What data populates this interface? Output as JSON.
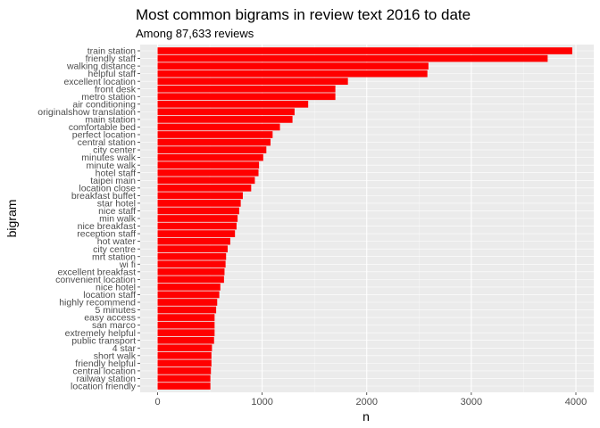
{
  "chart_data": {
    "type": "bar",
    "orientation": "horizontal",
    "title": "Most common bigrams in review text 2016 to date",
    "subtitle": "Among 87,633 reviews",
    "xlabel": "n",
    "ylabel": "bigram",
    "xlim": [
      0,
      4000
    ],
    "xticks": [
      0,
      1000,
      2000,
      3000,
      4000
    ],
    "grid": true,
    "bar_color": "#ff0000",
    "panel_color": "#ebebeb",
    "categories": [
      "train station",
      "friendly staff",
      "walking distance",
      "helpful staff",
      "excellent location",
      "front desk",
      "metro station",
      "air conditioning",
      "originalshow translation",
      "main station",
      "comfortable bed",
      "perfect location",
      "central station",
      "city center",
      "minutes walk",
      "minute walk",
      "hotel staff",
      "taipei main",
      "location close",
      "breakfast buffet",
      "star hotel",
      "nice staff",
      "min walk",
      "nice breakfast",
      "reception staff",
      "hot water",
      "city centre",
      "mrt station",
      "wi fi",
      "excellent breakfast",
      "convenient location",
      "nice hotel",
      "location staff",
      "highly recommend",
      "5 minutes",
      "easy access",
      "san marco",
      "extremely helpful",
      "public transport",
      "4 star",
      "short walk",
      "friendly helpful",
      "central location",
      "railway station",
      "location friendly"
    ],
    "values": [
      3965,
      3730,
      2590,
      2580,
      1820,
      1700,
      1700,
      1440,
      1310,
      1290,
      1170,
      1100,
      1080,
      1040,
      1010,
      970,
      965,
      930,
      895,
      815,
      795,
      780,
      765,
      755,
      740,
      695,
      670,
      655,
      650,
      640,
      635,
      600,
      590,
      570,
      560,
      545,
      545,
      545,
      540,
      520,
      515,
      515,
      510,
      505,
      505
    ]
  }
}
